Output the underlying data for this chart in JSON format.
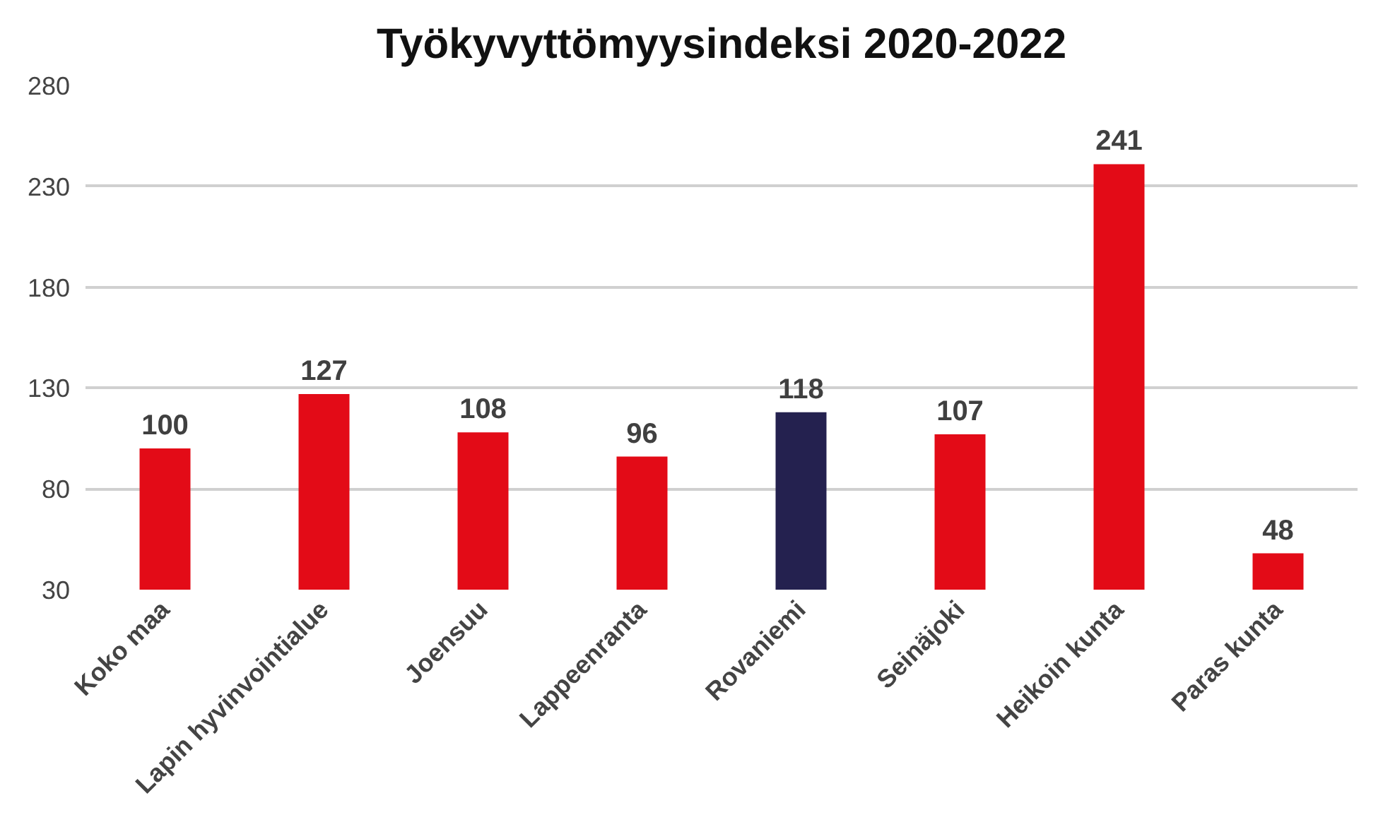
{
  "chart_data": {
    "type": "bar",
    "title": "Työkyvyttömyysindeksi 2020-2022",
    "categories": [
      "Koko maa",
      "Lapin hyvinvointialue",
      "Joensuu",
      "Lappeenranta",
      "Rovaniemi",
      "Seinäjoki",
      "Heikoin kunta",
      "Paras kunta"
    ],
    "values": [
      100,
      127,
      108,
      96,
      118,
      107,
      241,
      48
    ],
    "colors": [
      "#e30b17",
      "#e30b17",
      "#e30b17",
      "#e30b17",
      "#24214f",
      "#e30b17",
      "#e30b17",
      "#e30b17"
    ],
    "ylim": [
      30,
      280
    ],
    "yticks": [
      30,
      80,
      130,
      180,
      230,
      280
    ],
    "grid": "y",
    "data_labels": true
  }
}
